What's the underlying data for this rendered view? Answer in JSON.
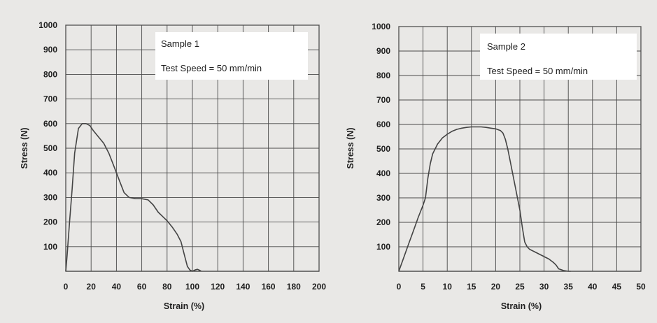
{
  "chart_data": [
    {
      "type": "line",
      "annotations": [
        "Sample 1",
        "Test Speed = 50 mm/min"
      ],
      "xlabel": "Strain (%)",
      "ylabel": "Stress (N)",
      "xlim": [
        0,
        200
      ],
      "ylim": [
        0,
        1000
      ],
      "xticks": [
        "0",
        "20",
        "40",
        "60",
        "80",
        "100",
        "120",
        "140",
        "160",
        "180",
        "200"
      ],
      "yticks": [
        "100",
        "200",
        "300",
        "400",
        "500",
        "600",
        "700",
        "800",
        "900",
        "1000"
      ],
      "grid": true,
      "series": [
        {
          "x": [
            0,
            1,
            3,
            5,
            7,
            10,
            13,
            16,
            19,
            22,
            26,
            30,
            34,
            37,
            40,
            43,
            46,
            50,
            55,
            60,
            65,
            69,
            73,
            77,
            80,
            84,
            88,
            91,
            94,
            96,
            98,
            100,
            102,
            104,
            106,
            107
          ],
          "y": [
            0,
            60,
            200,
            330,
            480,
            580,
            600,
            600,
            592,
            570,
            545,
            520,
            480,
            440,
            400,
            360,
            320,
            300,
            295,
            295,
            290,
            270,
            240,
            220,
            205,
            180,
            150,
            120,
            60,
            20,
            5,
            0,
            5,
            8,
            3,
            0
          ]
        }
      ]
    },
    {
      "type": "line",
      "annotations": [
        "Sample 2",
        "Test Speed = 50 mm/min"
      ],
      "xlabel": "Strain (%)",
      "ylabel": "Stress (N)",
      "xlim": [
        0,
        50
      ],
      "ylim": [
        0,
        1000
      ],
      "xticks": [
        "0",
        "5",
        "10",
        "15",
        "20",
        "25",
        "30",
        "35",
        "40",
        "45",
        "50"
      ],
      "yticks": [
        "100",
        "200",
        "300",
        "400",
        "500",
        "600",
        "700",
        "800",
        "900",
        "1000"
      ],
      "grid": true,
      "series": [
        {
          "x": [
            0,
            1,
            2,
            3,
            4,
            5,
            5.5,
            6,
            6.5,
            7,
            8,
            9,
            10,
            11,
            12,
            13,
            14,
            15,
            16,
            17,
            18,
            19,
            20,
            21,
            21.5,
            22,
            22.5,
            23,
            24,
            25,
            25.5,
            26,
            26.5,
            27,
            28,
            29,
            30,
            31,
            32,
            32.5,
            33,
            34,
            35,
            35.5
          ],
          "y": [
            0,
            55,
            110,
            165,
            220,
            270,
            300,
            380,
            440,
            480,
            520,
            545,
            560,
            572,
            580,
            585,
            588,
            590,
            590,
            590,
            588,
            585,
            582,
            575,
            565,
            540,
            500,
            450,
            350,
            250,
            180,
            120,
            100,
            90,
            80,
            70,
            60,
            50,
            35,
            25,
            10,
            3,
            0,
            0
          ]
        }
      ]
    }
  ]
}
